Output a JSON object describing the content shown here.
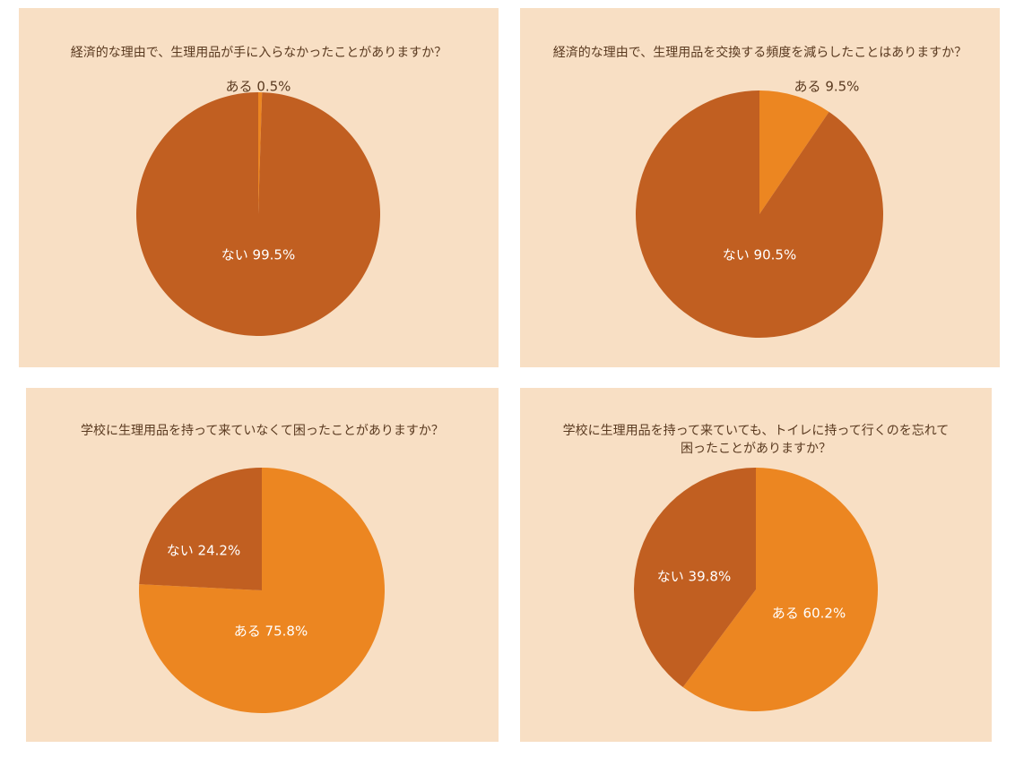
{
  "colors": {
    "panel_bg": "#f8dfc4",
    "dark_orange": "#c15f21",
    "orange": "#ec8621",
    "title_text": "#5a3a20"
  },
  "chart_data": [
    {
      "type": "pie",
      "title": "経済的な理由で、生理用品が手に入らなかったことがありますか？",
      "slices": [
        {
          "label": "ある",
          "value": 0.5,
          "value_text": "0.5%",
          "color": "#ec8621"
        },
        {
          "label": "ない",
          "value": 99.5,
          "value_text": "99.5%",
          "color": "#c15f21"
        }
      ]
    },
    {
      "type": "pie",
      "title": "経済的な理由で、生理用品を交換する頻度を減らしたことはありますか？",
      "slices": [
        {
          "label": "ある",
          "value": 9.5,
          "value_text": "9.5%",
          "color": "#ec8621"
        },
        {
          "label": "ない",
          "value": 90.5,
          "value_text": "90.5%",
          "color": "#c15f21"
        }
      ]
    },
    {
      "type": "pie",
      "title": "学校に生理用品を持って来ていなくて困ったことがありますか？",
      "slices": [
        {
          "label": "ある",
          "value": 75.8,
          "value_text": "75.8%",
          "color": "#ec8621"
        },
        {
          "label": "ない",
          "value": 24.2,
          "value_text": "24.2%",
          "color": "#c15f21"
        }
      ]
    },
    {
      "type": "pie",
      "title": "学校に生理用品を持って来ていても、トイレに持って行くのを忘れて\n困ったことがありますか？",
      "slices": [
        {
          "label": "ある",
          "value": 60.2,
          "value_text": "60.2%",
          "color": "#ec8621"
        },
        {
          "label": "ない",
          "value": 39.8,
          "value_text": "39.8%",
          "color": "#c15f21"
        }
      ]
    }
  ]
}
